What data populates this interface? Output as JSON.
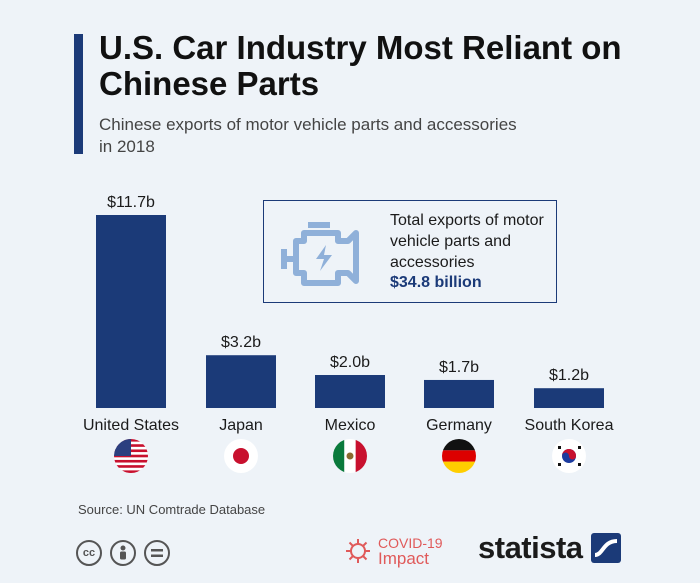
{
  "header": {
    "title": "U.S. Car Industry Most Reliant on Chinese Parts",
    "subtitle": "Chinese exports of motor vehicle parts and accessories in 2018"
  },
  "info_box": {
    "text": "Total exports of motor vehicle parts and accessories",
    "value": "$34.8 billion",
    "icon": "engine-icon"
  },
  "footer": {
    "source": "Source: UN Comtrade Database",
    "covid_line1": "COVID-19",
    "covid_line2": "Impact",
    "brand": "statista",
    "license_icons": [
      "cc-icon",
      "by-icon",
      "nd-icon"
    ]
  },
  "colors": {
    "bar": "#1b3a78",
    "accent": "#1b3a78",
    "background": "#eef3f8",
    "covid": "#e05a5a"
  },
  "chart_data": {
    "type": "bar",
    "categories": [
      "United States",
      "Japan",
      "Mexico",
      "Germany",
      "South Korea"
    ],
    "values": [
      11.7,
      3.2,
      2.0,
      1.7,
      1.2
    ],
    "value_labels": [
      "$11.7b",
      "$3.2b",
      "$2.0b",
      "$1.7b",
      "$1.2b"
    ],
    "flags": [
      "us-flag-icon",
      "japan-flag-icon",
      "mexico-flag-icon",
      "germany-flag-icon",
      "south-korea-flag-icon"
    ],
    "title": "U.S. Car Industry Most Reliant on Chinese Parts",
    "xlabel": "",
    "ylabel": "",
    "ylim": [
      0,
      11.7
    ],
    "grid": false,
    "legend": "none"
  }
}
